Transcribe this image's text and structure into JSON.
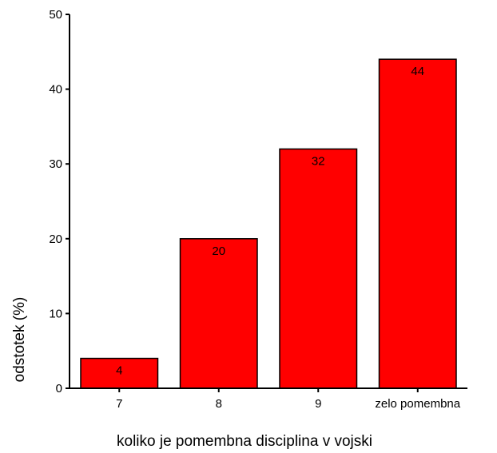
{
  "chart_data": {
    "type": "bar",
    "title": "",
    "xlabel": "koliko je pomembna disciplina v vojski",
    "ylabel": "odstotek (%)",
    "categories": [
      "7",
      "8",
      "9",
      "zelo pomembna"
    ],
    "values": [
      4,
      20,
      32,
      44
    ],
    "data_labels": [
      "4",
      "20",
      "32",
      "44"
    ],
    "ylim": [
      0,
      50
    ],
    "yticks": [
      0,
      10,
      20,
      30,
      40,
      50
    ],
    "grid": false,
    "bar_color": "#ff0000",
    "bar_edge_color": "#000000"
  }
}
